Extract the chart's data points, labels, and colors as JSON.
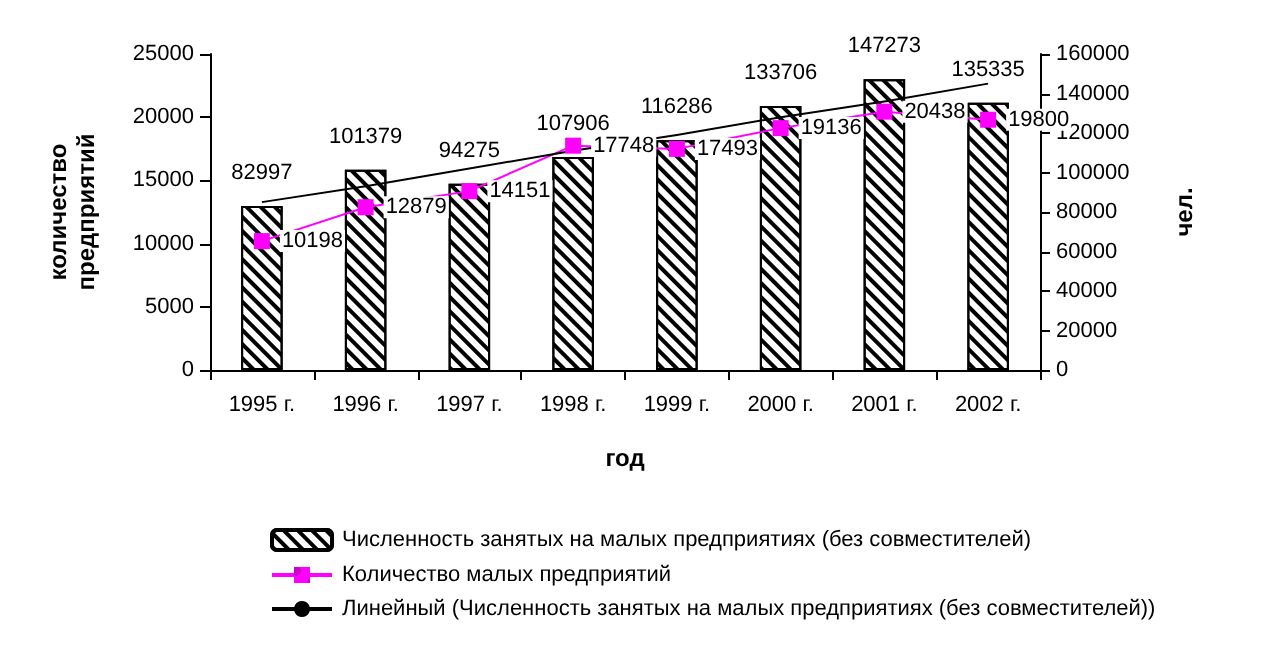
{
  "chart_data": {
    "type": "bar",
    "xlabel": "год",
    "ylabel": "количество предприятий",
    "y2label": "чел.",
    "categories": [
      "1995 г.",
      "1996 г.",
      "1997 г.",
      "1998 г.",
      "1999 г.",
      "2000 г.",
      "2001 г.",
      "2002 г."
    ],
    "series": [
      {
        "name": "Численность занятых на малых предприятиях (без совместителей)",
        "axis": "y2",
        "color": "#000000",
        "values": [
          82997,
          101379,
          94275,
          107906,
          116286,
          133706,
          147273,
          135335
        ],
        "value_labels": [
          "82997",
          "101379",
          "94275",
          "107906",
          "116286",
          "133706",
          "147273",
          "135335"
        ]
      },
      {
        "name": "Количество малых предприятий",
        "type": "line",
        "color": "#ff00ff",
        "marker": "square",
        "values": [
          10198,
          12879,
          14151,
          17748,
          17493,
          19136,
          20438,
          19800
        ],
        "value_labels": [
          "10198",
          "12879",
          "14151",
          "17748",
          "17493",
          "19136",
          "20438",
          "19800"
        ]
      },
      {
        "name": "Линейный (Численность занятых на малых предприятиях (без совместителей))",
        "type": "line",
        "axis": "y2",
        "color": "#000000",
        "marker": "none",
        "values": [
          85000,
          93000,
          102000,
          111000,
          119000,
          128000,
          136000,
          145000
        ]
      }
    ],
    "ylim": [
      0,
      25000
    ],
    "yticks": [
      0,
      5000,
      10000,
      15000,
      20000,
      25000
    ],
    "y2lim": [
      0,
      160000
    ],
    "y2ticks": [
      0,
      20000,
      40000,
      60000,
      80000,
      100000,
      120000,
      140000,
      160000
    ],
    "grid": false,
    "legend": "bottom"
  }
}
